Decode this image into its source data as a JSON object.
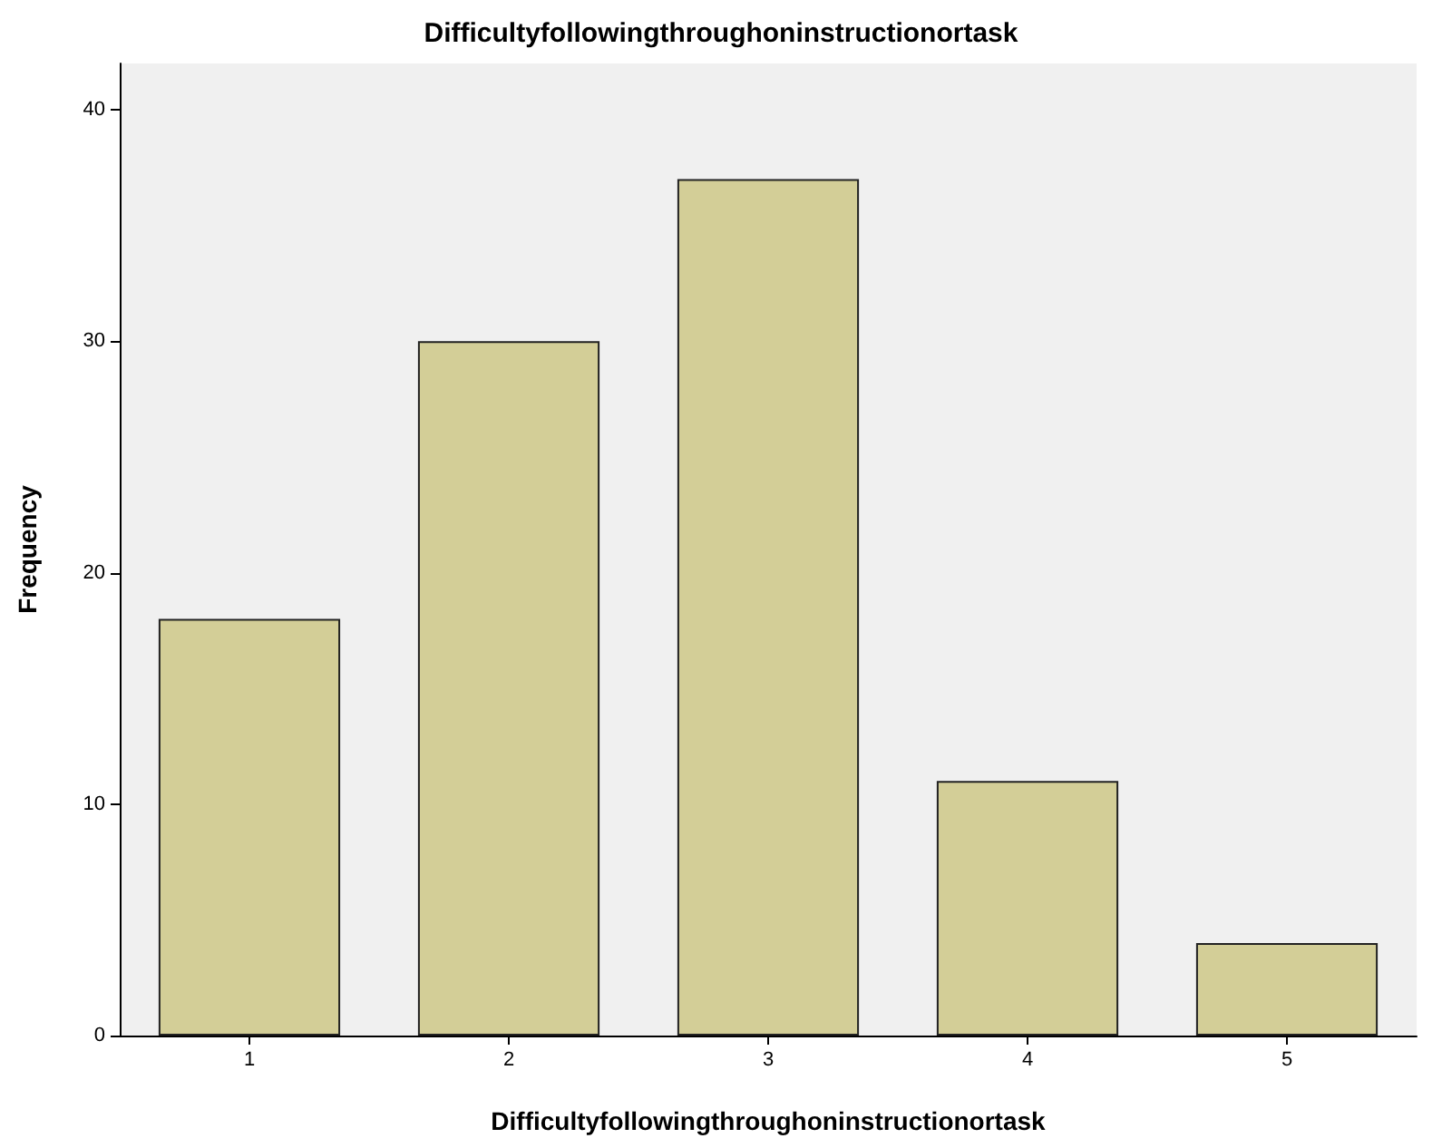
{
  "chart_data": {
    "type": "bar",
    "title": "Difficultyfollowingthroughoninstructionortask",
    "xlabel": "Difficultyfollowingthroughoninstructionortask",
    "ylabel": "Frequency",
    "categories": [
      "1",
      "2",
      "3",
      "4",
      "5"
    ],
    "values": [
      18,
      30,
      37,
      11,
      4
    ],
    "color": "#d3ce97",
    "ylim": [
      0,
      42
    ],
    "yticks": [
      0,
      10,
      20,
      30,
      40
    ],
    "grid": false
  }
}
